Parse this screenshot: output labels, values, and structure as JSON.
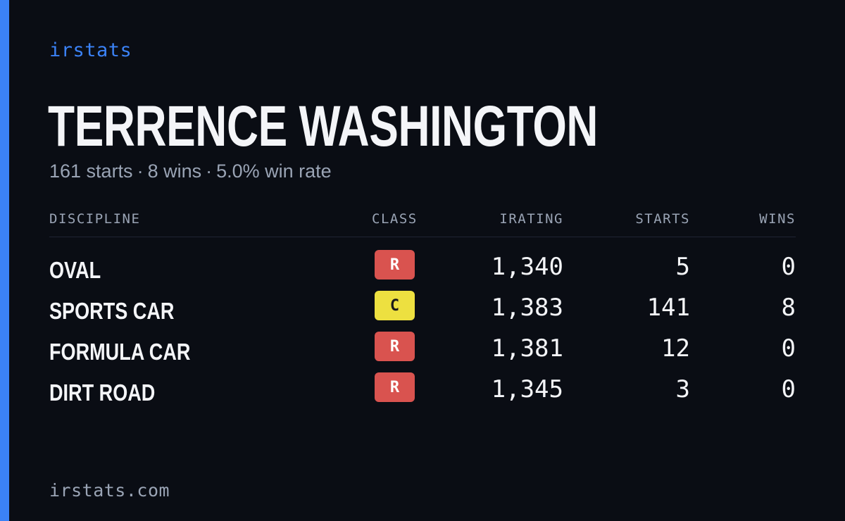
{
  "brand": "irstats",
  "driver": {
    "name": "TERRENCE WASHINGTON",
    "starts_text": "161 starts",
    "wins_text": "8 wins",
    "win_rate_text": "5.0% win rate",
    "separator": "·"
  },
  "table": {
    "headers": {
      "discipline": "DISCIPLINE",
      "class": "CLASS",
      "irating": "IRATING",
      "starts": "STARTS",
      "wins": "WINS"
    },
    "rows": [
      {
        "discipline": "OVAL",
        "class": "R",
        "class_color": "#d9534f",
        "class_text_color": "#ffffff",
        "irating": "1,340",
        "starts": "5",
        "wins": "0"
      },
      {
        "discipline": "SPORTS CAR",
        "class": "C",
        "class_color": "#ede040",
        "class_text_color": "#1a1a1a",
        "irating": "1,383",
        "starts": "141",
        "wins": "8"
      },
      {
        "discipline": "FORMULA CAR",
        "class": "R",
        "class_color": "#d9534f",
        "class_text_color": "#ffffff",
        "irating": "1,381",
        "starts": "12",
        "wins": "0"
      },
      {
        "discipline": "DIRT ROAD",
        "class": "R",
        "class_color": "#d9534f",
        "class_text_color": "#ffffff",
        "irating": "1,345",
        "starts": "3",
        "wins": "0"
      }
    ]
  },
  "footer": "irstats.com",
  "colors": {
    "background": "#0a0d14",
    "accent": "#3b82f6",
    "muted_text": "#9aa4b5",
    "primary_text": "#f4f5f8"
  }
}
